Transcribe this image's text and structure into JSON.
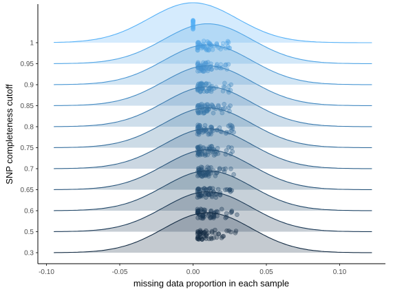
{
  "chart_data": {
    "type": "ridgeline",
    "xlabel": "missing data proportion in each sample",
    "ylabel": "SNP completeness cutoff",
    "xlim": [
      -0.105,
      0.13
    ],
    "xticks": [
      -0.1,
      -0.05,
      0.0,
      0.05,
      0.1
    ],
    "xtick_labels": [
      "-0.10",
      "-0.05",
      "0.00",
      "0.05",
      "0.10"
    ],
    "grid": false,
    "legend": "none",
    "colors": {
      "light": "#56B1F7",
      "dark": "#132B43",
      "axis": "#000000"
    },
    "rows": [
      {
        "cutoff": "0.3",
        "mean_missing": 0.01,
        "density_sd": 0.03,
        "points_min": 0.003,
        "points_max": 0.03
      },
      {
        "cutoff": "0.5",
        "mean_missing": 0.01,
        "density_sd": 0.03,
        "points_min": 0.003,
        "points_max": 0.03
      },
      {
        "cutoff": "0.6",
        "mean_missing": 0.01,
        "density_sd": 0.03,
        "points_min": 0.003,
        "points_max": 0.028
      },
      {
        "cutoff": "0.65",
        "mean_missing": 0.01,
        "density_sd": 0.03,
        "points_min": 0.003,
        "points_max": 0.028
      },
      {
        "cutoff": "0.7",
        "mean_missing": 0.01,
        "density_sd": 0.03,
        "points_min": 0.003,
        "points_max": 0.028
      },
      {
        "cutoff": "0.75",
        "mean_missing": 0.01,
        "density_sd": 0.03,
        "points_min": 0.003,
        "points_max": 0.028
      },
      {
        "cutoff": "0.8",
        "mean_missing": 0.01,
        "density_sd": 0.03,
        "points_min": 0.003,
        "points_max": 0.026
      },
      {
        "cutoff": "0.85",
        "mean_missing": 0.01,
        "density_sd": 0.03,
        "points_min": 0.003,
        "points_max": 0.026
      },
      {
        "cutoff": "0.9",
        "mean_missing": 0.01,
        "density_sd": 0.03,
        "points_min": 0.003,
        "points_max": 0.026
      },
      {
        "cutoff": "0.95",
        "mean_missing": 0.01,
        "density_sd": 0.03,
        "points_min": 0.003,
        "points_max": 0.026
      },
      {
        "cutoff": "1",
        "mean_missing": 0.0,
        "density_sd": 0.03,
        "points_min": 0.0,
        "points_max": 0.0
      }
    ]
  }
}
